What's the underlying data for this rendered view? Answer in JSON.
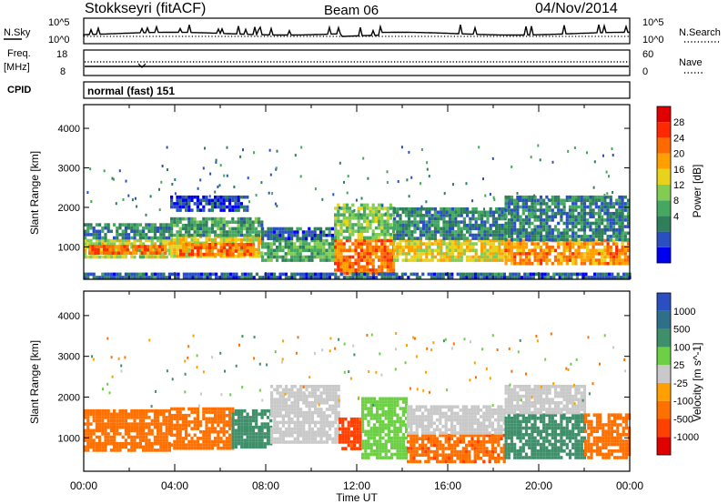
{
  "header": {
    "station": "Stokkseyri (fitACF)",
    "beam": "Beam 06",
    "date": "04/Nov/2014"
  },
  "strip_labels": {
    "nsky": "N.Sky",
    "freq_1": "Freq.",
    "freq_2": "[MHz]",
    "cpid": "CPID",
    "nsearch": "N.Search",
    "nave": "Nave",
    "mode": "normal (fast) 151",
    "nsky_ticks": [
      "10^5",
      "10^0"
    ],
    "freq_ticks": [
      "18",
      "8"
    ],
    "nave_ticks": [
      "60",
      "0"
    ]
  },
  "chart_data": [
    {
      "type": "heatmap",
      "title": "",
      "xlabel": "Time UT",
      "ylabel": "Slant Range [km]",
      "xlim": [
        "00:00",
        "24:00"
      ],
      "ylim": [
        180,
        4600
      ],
      "x_ticks": [
        "00:00",
        "04:00",
        "08:00",
        "12:00",
        "16:00",
        "20:00",
        "00:00"
      ],
      "y_ticks": [
        1000,
        2000,
        3000,
        4000
      ],
      "colorbar": {
        "label": "Power [dB]",
        "ticks": [
          "28",
          "24",
          "20",
          "16",
          "12",
          "8",
          "4"
        ],
        "colors": [
          "#0000f0",
          "#2a4fc0",
          "#2e7f5a",
          "#45a860",
          "#82cc52",
          "#e8d21c",
          "#ffa000",
          "#ff6a00",
          "#ff2800",
          "#e00000"
        ]
      },
      "bands": [
        {
          "t0": 0.0,
          "t1": 3.8,
          "r0": 750,
          "r1": 1200,
          "value": 18
        },
        {
          "t0": 0.0,
          "t1": 3.8,
          "r0": 1200,
          "r1": 1600,
          "value": 10
        },
        {
          "t0": 0.2,
          "t1": 3.6,
          "r0": 850,
          "r1": 1050,
          "value": 26
        },
        {
          "t0": 3.8,
          "t1": 7.8,
          "r0": 750,
          "r1": 1300,
          "value": 20
        },
        {
          "t0": 3.8,
          "t1": 7.8,
          "r0": 1300,
          "r1": 1750,
          "value": 12
        },
        {
          "t0": 4.2,
          "t1": 7.4,
          "r0": 850,
          "r1": 1100,
          "value": 26
        },
        {
          "t0": 3.8,
          "t1": 7.2,
          "r0": 1900,
          "r1": 2300,
          "value": 6
        },
        {
          "t0": 7.8,
          "t1": 11.0,
          "r0": 700,
          "r1": 1200,
          "value": 14
        },
        {
          "t0": 7.8,
          "t1": 11.0,
          "r0": 1200,
          "r1": 1500,
          "value": 8
        },
        {
          "t0": 11.0,
          "t1": 13.6,
          "r0": 350,
          "r1": 1200,
          "value": 26
        },
        {
          "t0": 11.0,
          "t1": 13.6,
          "r0": 1200,
          "r1": 2100,
          "value": 16
        },
        {
          "t0": 13.6,
          "t1": 18.5,
          "r0": 700,
          "r1": 1200,
          "value": 20
        },
        {
          "t0": 13.6,
          "t1": 18.5,
          "r0": 1200,
          "r1": 2000,
          "value": 10
        },
        {
          "t0": 18.5,
          "t1": 24.0,
          "r0": 600,
          "r1": 1200,
          "value": 24
        },
        {
          "t0": 18.5,
          "t1": 24.0,
          "r0": 1200,
          "r1": 2300,
          "value": 10
        },
        {
          "t0": 0.0,
          "t1": 24.0,
          "r0": 200,
          "r1": 350,
          "value": 8
        }
      ]
    },
    {
      "type": "heatmap",
      "title": "",
      "xlabel": "Time UT",
      "ylabel": "Slant Range [km]",
      "xlim": [
        "00:00",
        "24:00"
      ],
      "ylim": [
        180,
        4600
      ],
      "x_ticks": [
        "00:00",
        "04:00",
        "08:00",
        "12:00",
        "16:00",
        "20:00",
        "00:00"
      ],
      "y_ticks": [
        1000,
        2000,
        3000,
        4000
      ],
      "colorbar": {
        "label": "Velocity [m s^-1]",
        "ticks": [
          "1000",
          "500",
          "100",
          "25",
          "-25",
          "-100",
          "-500",
          "-1000"
        ],
        "colors": [
          "#2a4fc0",
          "#2e6f8a",
          "#3f8f6a",
          "#6ccf44",
          "#c9c9c9",
          "#ffa000",
          "#ff7000",
          "#ff4000",
          "#e00000"
        ]
      },
      "bands": [
        {
          "t0": 0.0,
          "t1": 3.8,
          "r0": 700,
          "r1": 1700,
          "value": -300
        },
        {
          "t0": 3.8,
          "t1": 6.5,
          "r0": 750,
          "r1": 1750,
          "value": -300
        },
        {
          "t0": 6.5,
          "t1": 8.2,
          "r0": 750,
          "r1": 1700,
          "value": 300
        },
        {
          "t0": 8.2,
          "t1": 11.2,
          "r0": 900,
          "r1": 2300,
          "value": 0
        },
        {
          "t0": 11.2,
          "t1": 12.2,
          "r0": 700,
          "r1": 1500,
          "value": -700
        },
        {
          "t0": 12.2,
          "t1": 14.2,
          "r0": 500,
          "r1": 2000,
          "value": 60
        },
        {
          "t0": 14.2,
          "t1": 18.5,
          "r0": 450,
          "r1": 1100,
          "value": -400
        },
        {
          "t0": 14.2,
          "t1": 18.5,
          "r0": 1100,
          "r1": 1800,
          "value": 0
        },
        {
          "t0": 18.5,
          "t1": 22.0,
          "r0": 500,
          "r1": 1600,
          "value": 300
        },
        {
          "t0": 18.5,
          "t1": 22.0,
          "r0": 1600,
          "r1": 2300,
          "value": 0
        },
        {
          "t0": 22.0,
          "t1": 24.0,
          "r0": 500,
          "r1": 1600,
          "value": -300
        }
      ]
    }
  ]
}
